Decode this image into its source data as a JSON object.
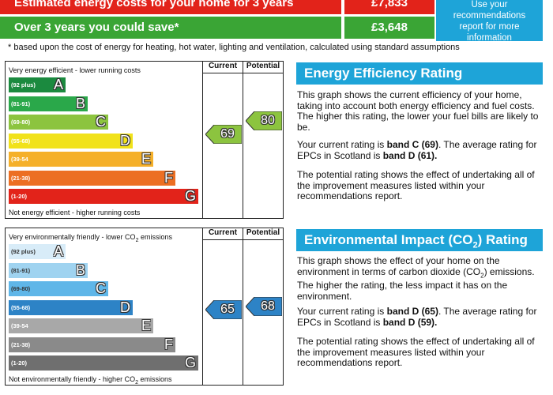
{
  "costs": {
    "row1_label": "Estimated energy costs for your home for 3 years",
    "row1_value": "£7,833",
    "row2_label": "Over 3 years you could save*",
    "row2_value": "£3,648",
    "tip_lines": [
      "Use your",
      "recommendations",
      "report for more",
      "information"
    ],
    "footnote": "* based upon the cost of energy for heating, hot water, lighting and ventilation, calculated using standard assumptions"
  },
  "colors": {
    "energy_bands": [
      "#1b8a3f",
      "#2aa84a",
      "#8cc43f",
      "#f1e21a",
      "#f5b02a",
      "#ec6f23",
      "#e2231a"
    ],
    "co2_bands": [
      "#d8ecf8",
      "#9fd3f0",
      "#5fb6e8",
      "#2d83c6",
      "#a8a8a8",
      "#8a8a8a",
      "#6f6f6f"
    ],
    "energy_current": "#8cc43f",
    "energy_potential": "#8cc43f",
    "co2_current": "#2d83c6",
    "co2_potential": "#2d83c6",
    "panel_blue": "#1ea4d8"
  },
  "energy_chart": {
    "col_current": "Current",
    "col_potential": "Potential",
    "top_caption": "Very energy efficient - lower running costs",
    "bottom_caption": "Not energy efficient - higher running costs",
    "bands": [
      {
        "range": "(92 plus)",
        "letter": "A"
      },
      {
        "range": "(81-91)",
        "letter": "B"
      },
      {
        "range": "(69-80)",
        "letter": "C"
      },
      {
        "range": "(55-68)",
        "letter": "D"
      },
      {
        "range": "(39-54",
        "letter": "E"
      },
      {
        "range": "(21-38)",
        "letter": "F"
      },
      {
        "range": "(1-20)",
        "letter": "G"
      }
    ],
    "current": "69",
    "potential": "80"
  },
  "co2_chart": {
    "col_current": "Current",
    "col_potential": "Potential",
    "top_caption_pre": "Very environmentally friendly - lower CO",
    "top_caption_sub": "2",
    "top_caption_post": " emissions",
    "bottom_caption_pre": "Not environmentally friendly - higher CO",
    "bottom_caption_sub": "2",
    "bottom_caption_post": " emissions",
    "bands": [
      {
        "range": "(92 plus)",
        "letter": "A"
      },
      {
        "range": "(81-91)",
        "letter": "B"
      },
      {
        "range": "(69-80)",
        "letter": "C"
      },
      {
        "range": "(55-68)",
        "letter": "D"
      },
      {
        "range": "(39-54",
        "letter": "E"
      },
      {
        "range": "(21-38)",
        "letter": "F"
      },
      {
        "range": "(1-20)",
        "letter": "G"
      }
    ],
    "current": "65",
    "potential": "68"
  },
  "energy_panel": {
    "title": "Energy Efficiency Rating",
    "p1": "This graph shows the current efficiency of your home, taking into account both energy efficiency and fuel costs. The higher this rating, the lower your fuel bills are likely to be.",
    "p2_pre": "Your current rating is ",
    "p2_bold1": "band C (69)",
    "p2_mid": ". The average rating for EPCs in Scotland is ",
    "p2_bold2": "band D (61).",
    "p3": "The potential rating shows the effect of undertaking all of the improvement measures listed within your recommendations report."
  },
  "co2_panel": {
    "title_pre": "Environmental Impact (CO",
    "title_sub": "2",
    "title_post": ") Rating",
    "p1_pre": "This graph shows the effect of your home on the environment in terms of carbon dioxide (CO",
    "p1_sub": "2",
    "p1_post": ") emissions. The higher the rating, the less impact it has on the environment.",
    "p2_pre": "Your current rating is ",
    "p2_bold1": "band D (65)",
    "p2_mid": ". The average rating for EPCs in Scotland is ",
    "p2_bold2": "band D (59).",
    "p3": "The potential rating shows the effect of undertaking all of the improvement measures listed within your recommendations report."
  }
}
